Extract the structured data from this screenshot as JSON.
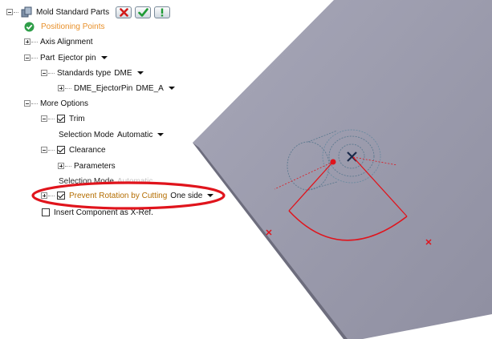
{
  "tree": {
    "root": {
      "label": "Mold Standard Parts",
      "icon": "mold-parts-icon",
      "buttons": [
        {
          "name": "cancel-button",
          "icon": "red-x-icon"
        },
        {
          "name": "ok-button",
          "icon": "green-check-icon"
        },
        {
          "name": "info-button",
          "icon": "exclamation-icon"
        }
      ]
    },
    "positioning_points": "Positioning Points",
    "axis_alignment": "Axis Alignment",
    "part_label": "Part",
    "part_value": "Ejector pin",
    "standards_label": "Standards type",
    "standards_value": "DME",
    "dme_item_label": "DME_EjectorPin",
    "dme_item_value": "DME_A",
    "more_options": "More Options",
    "trim": {
      "label": "Trim",
      "checked": true
    },
    "trim_selection_label": "Selection Mode",
    "trim_selection_value": "Automatic",
    "clearance": {
      "label": "Clearance",
      "checked": true
    },
    "parameters": "Parameters",
    "clearance_selection_label": "Selection Mode",
    "clearance_selection_value": "Automatic",
    "prevent_rotation": {
      "label": "Prevent Rotation by Cutting",
      "checked": true,
      "value": "One side"
    },
    "insert_xref": {
      "label": "Insert Component as X-Ref.",
      "checked": false
    }
  },
  "colors": {
    "accent_orange": "#e8902a",
    "highlight_label": "#b46d00",
    "annotation_red": "#e0141c",
    "plate": "#9a9aac",
    "plate_edge": "#6d6d7d"
  }
}
